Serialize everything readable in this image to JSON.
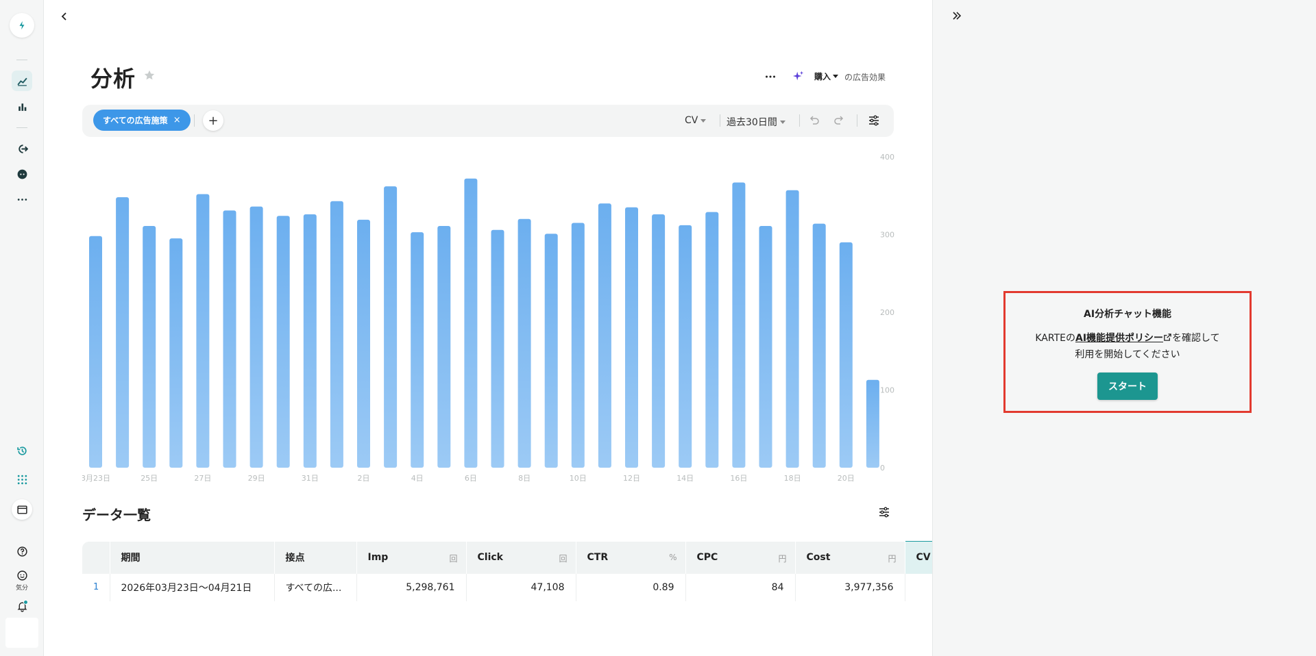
{
  "header": {
    "title": "分析",
    "goal": "購入",
    "goal_suffix": "の広告効果"
  },
  "filters": {
    "chip_label": "すべての広告施策",
    "chip_close": "×",
    "add": "+",
    "metric": "CV",
    "period": "過去30日間"
  },
  "chart_data": {
    "type": "bar",
    "categories": [
      "3月23日",
      "24日",
      "25日",
      "26日",
      "27日",
      "28日",
      "29日",
      "30日",
      "31日",
      "1日",
      "2日",
      "3日",
      "4日",
      "5日",
      "6日",
      "7日",
      "8日",
      "9日",
      "10日",
      "11日",
      "12日",
      "13日",
      "14日",
      "15日",
      "16日",
      "17日",
      "18日",
      "19日",
      "20日",
      "21日"
    ],
    "tick_labels": [
      "3月23日",
      "25日",
      "27日",
      "29日",
      "31日",
      "2日",
      "4日",
      "6日",
      "8日",
      "10日",
      "12日",
      "14日",
      "16日",
      "18日",
      "20日"
    ],
    "values": [
      298,
      348,
      311,
      295,
      352,
      331,
      336,
      324,
      326,
      343,
      319,
      362,
      303,
      311,
      372,
      306,
      320,
      301,
      315,
      340,
      335,
      326,
      312,
      329,
      367,
      311,
      357,
      314,
      290,
      113
    ],
    "ylim": [
      0,
      400
    ],
    "yticks": [
      0,
      100,
      200,
      300,
      400
    ],
    "color": "#70b2f1"
  },
  "data_list": {
    "title": "データ一覧",
    "columns": [
      {
        "label": "",
        "unit": ""
      },
      {
        "label": "期間",
        "unit": ""
      },
      {
        "label": "接点",
        "unit": ""
      },
      {
        "label": "Imp",
        "unit": "回"
      },
      {
        "label": "Click",
        "unit": "回"
      },
      {
        "label": "CTR",
        "unit": "%"
      },
      {
        "label": "CPC",
        "unit": "円"
      },
      {
        "label": "Cost",
        "unit": "円"
      },
      {
        "label": "CV",
        "unit": ""
      }
    ],
    "row": {
      "index": "1",
      "period": "2026年03月23日〜04月21日",
      "touchpoint": "すべての広...",
      "imp": "5,298,761",
      "click": "47,108",
      "ctr": "0.89",
      "cpc": "84",
      "cost": "3,977,356",
      "cv": ""
    }
  },
  "sidebar": {
    "mood_label": "気分"
  },
  "ai_panel": {
    "title": "AI分析チャット機能",
    "line1_prefix": "KARTEの",
    "policy_link": "AI機能提供ポリシー",
    "line1_suffix": "を確認して",
    "line2": "利用を開始してください",
    "start_label": "スタート"
  },
  "colors": {
    "accent": "#1a9aa0",
    "chip": "#3d97e8",
    "bar": "#70b2f1",
    "highlight_border": "#e23a2f"
  }
}
